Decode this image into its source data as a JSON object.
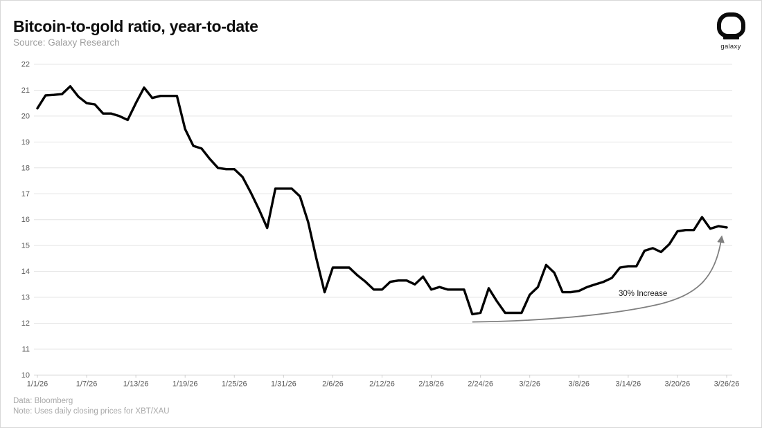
{
  "header": {
    "title": "Bitcoin-to-gold ratio, year-to-date",
    "subtitle": "Source: Galaxy Research",
    "logo_text": "galaxy"
  },
  "footer": {
    "line1": "Data: Bloomberg",
    "line2": "Note: Uses daily closing prices for XBT/XAU"
  },
  "chart_data": {
    "type": "line",
    "title": "Bitcoin-to-gold ratio, year-to-date",
    "ylabel": "",
    "xlabel": "",
    "ylim": [
      10,
      22
    ],
    "grid": "horizontal",
    "legend_position": "none",
    "series_color": "#000000",
    "grid_color": "#e4e4e4",
    "axis_color": "#cfcfcf",
    "tick_label_color": "#595959",
    "annotation": {
      "text": "30% Increase",
      "arrow_color": "#808080",
      "text_color": "#1a1a1a"
    },
    "y_ticks": [
      10,
      11,
      12,
      13,
      14,
      15,
      16,
      17,
      18,
      19,
      20,
      21,
      22
    ],
    "x_tick_labels": [
      "1/1/26",
      "1/7/26",
      "1/13/26",
      "1/19/26",
      "1/25/26",
      "1/31/26",
      "2/6/26",
      "2/12/26",
      "2/18/26",
      "2/24/26",
      "3/2/26",
      "3/8/26",
      "3/14/26",
      "3/20/26",
      "3/26/26"
    ],
    "x_tick_interval_days": 6,
    "x": [
      "1/1/26",
      "1/2/26",
      "1/3/26",
      "1/4/26",
      "1/5/26",
      "1/6/26",
      "1/7/26",
      "1/8/26",
      "1/9/26",
      "1/10/26",
      "1/11/26",
      "1/12/26",
      "1/13/26",
      "1/14/26",
      "1/15/26",
      "1/16/26",
      "1/17/26",
      "1/18/26",
      "1/19/26",
      "1/20/26",
      "1/21/26",
      "1/22/26",
      "1/23/26",
      "1/24/26",
      "1/25/26",
      "1/26/26",
      "1/27/26",
      "1/28/26",
      "1/29/26",
      "1/30/26",
      "1/31/26",
      "2/1/26",
      "2/2/26",
      "2/3/26",
      "2/4/26",
      "2/5/26",
      "2/6/26",
      "2/7/26",
      "2/8/26",
      "2/9/26",
      "2/10/26",
      "2/11/26",
      "2/12/26",
      "2/13/26",
      "2/14/26",
      "2/15/26",
      "2/16/26",
      "2/17/26",
      "2/18/26",
      "2/19/26",
      "2/20/26",
      "2/21/26",
      "2/22/26",
      "2/23/26",
      "2/24/26",
      "2/25/26",
      "2/26/26",
      "2/27/26",
      "2/28/26",
      "3/1/26",
      "3/2/26",
      "3/3/26",
      "3/4/26",
      "3/5/26",
      "3/6/26",
      "3/7/26",
      "3/8/26",
      "3/9/26",
      "3/10/26",
      "3/11/26",
      "3/12/26",
      "3/13/26",
      "3/14/26",
      "3/15/26",
      "3/16/26",
      "3/17/26",
      "3/18/26",
      "3/19/26",
      "3/20/26",
      "3/21/26",
      "3/22/26",
      "3/23/26",
      "3/24/26",
      "3/25/26",
      "3/26/26"
    ],
    "values": [
      20.3,
      20.8,
      20.82,
      20.85,
      21.15,
      20.75,
      20.5,
      20.45,
      20.1,
      20.1,
      20.0,
      19.85,
      20.5,
      21.1,
      20.7,
      20.78,
      20.78,
      20.78,
      19.5,
      18.85,
      18.75,
      18.35,
      18.0,
      17.95,
      17.95,
      17.65,
      17.05,
      16.4,
      15.68,
      17.2,
      17.2,
      17.2,
      16.9,
      15.9,
      14.5,
      13.2,
      14.15,
      14.15,
      14.15,
      13.85,
      13.6,
      13.3,
      13.3,
      13.6,
      13.65,
      13.65,
      13.5,
      13.8,
      13.3,
      13.4,
      13.3,
      13.3,
      13.3,
      12.35,
      12.4,
      13.35,
      12.85,
      12.4,
      12.4,
      12.4,
      13.1,
      13.4,
      14.25,
      13.95,
      13.2,
      13.2,
      13.25,
      13.4,
      13.5,
      13.6,
      13.75,
      14.15,
      14.2,
      14.2,
      14.8,
      14.9,
      14.75,
      15.05,
      15.55,
      15.6,
      15.6,
      16.1,
      15.65,
      15.75,
      15.7
    ]
  }
}
